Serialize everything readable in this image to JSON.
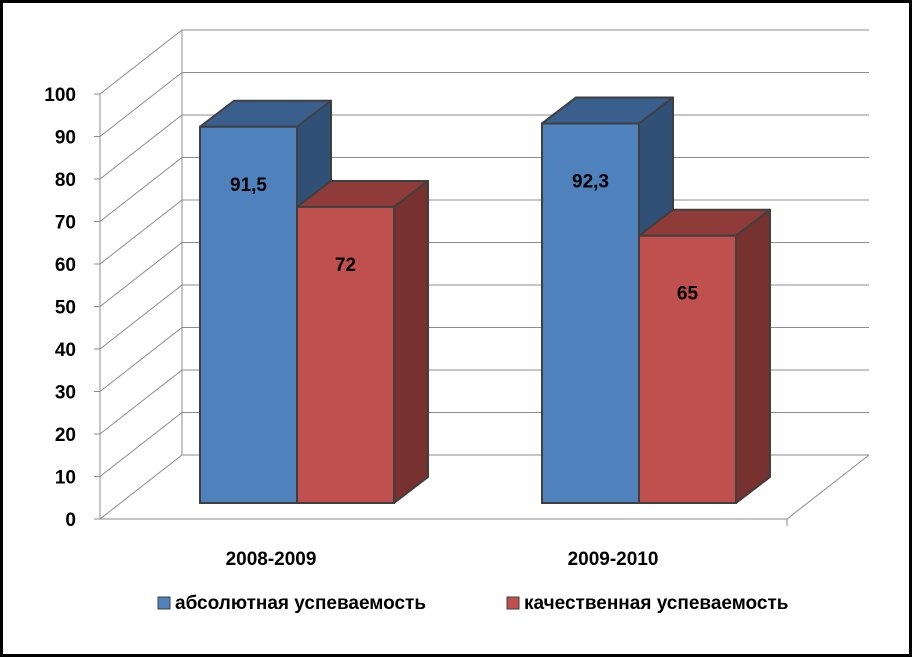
{
  "chart_data": {
    "type": "bar",
    "style": "3d-clustered-column",
    "categories": [
      "2008-2009",
      "2009-2010"
    ],
    "series": [
      {
        "name": "абсолютная успеваемость",
        "values": [
          91.5,
          92.3
        ],
        "labels": [
          "91,5",
          "92,3"
        ],
        "color": "#4f81bd"
      },
      {
        "name": "качественная успеваемость",
        "values": [
          72,
          65
        ],
        "labels": [
          "72",
          "65"
        ],
        "color": "#c0504d"
      }
    ],
    "ylim": [
      0,
      100
    ],
    "yticks": [
      0,
      10,
      20,
      30,
      40,
      50,
      60,
      70,
      80,
      90,
      100
    ],
    "grid": true,
    "legend_position": "bottom"
  }
}
